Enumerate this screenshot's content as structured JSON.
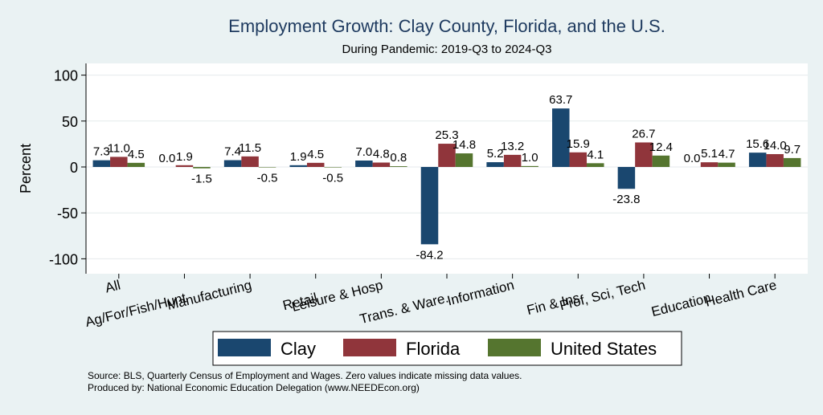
{
  "chart_data": {
    "type": "bar",
    "title": "Employment Growth: Clay County, Florida, and the U.S.",
    "subtitle": "During Pandemic: 2019-Q3 to 2024-Q3",
    "ylabel": "Percent",
    "ylim": [
      -120,
      115
    ],
    "yticks": [
      -100,
      -50,
      0,
      50,
      100
    ],
    "grid": true,
    "legend_position": "bottom",
    "categories": [
      "All",
      "Ag/For/Fish/Hunt",
      "Manufacturing",
      "Retail",
      "Leisure & Hosp",
      "Trans. & Ware.",
      "Information",
      "Fin & Ins",
      "Prof, Sci, Tech",
      "Education",
      "Health Care"
    ],
    "series": [
      {
        "name": "Clay",
        "color": "#1a476f",
        "values": [
          7.3,
          0.0,
          7.4,
          1.9,
          7.0,
          -84.2,
          5.2,
          63.7,
          -23.8,
          0.0,
          15.6
        ],
        "labels": [
          "7.3",
          "0.0",
          "7.4",
          "1.9",
          "7.0",
          "-84.2",
          "5.2",
          "63.7",
          "-23.8",
          "0.0",
          "15.6"
        ]
      },
      {
        "name": "Florida",
        "color": "#90353b",
        "values": [
          11.0,
          1.9,
          11.5,
          4.5,
          4.8,
          25.3,
          13.2,
          15.9,
          26.7,
          5.1,
          14.0
        ],
        "labels": [
          "11.0",
          "1.9",
          "11.5",
          "4.5",
          "4.8",
          "25.3",
          "13.2",
          "15.9",
          "26.7",
          "5.1",
          "14.0"
        ]
      },
      {
        "name": "United States",
        "color": "#55752f",
        "values": [
          4.5,
          -1.5,
          -0.5,
          -0.5,
          0.8,
          14.8,
          1.0,
          4.1,
          12.4,
          4.7,
          9.7
        ],
        "labels": [
          "4.5",
          "-1.5",
          "-0.5",
          "-0.5",
          "0.8",
          "14.8",
          "1.0",
          "4.1",
          "12.4",
          "4.7",
          "9.7"
        ]
      }
    ]
  },
  "notes": {
    "source": "Source: BLS, Quarterly Census of Employment and Wages. Zero values indicate missing data values.",
    "produced_by": "Produced by: National Economic Education Delegation (www.NEEDEcon.org)"
  },
  "colors": {
    "background": "#eaf2f3",
    "plot_background": "#ffffff",
    "title": "#1e3a5f"
  }
}
